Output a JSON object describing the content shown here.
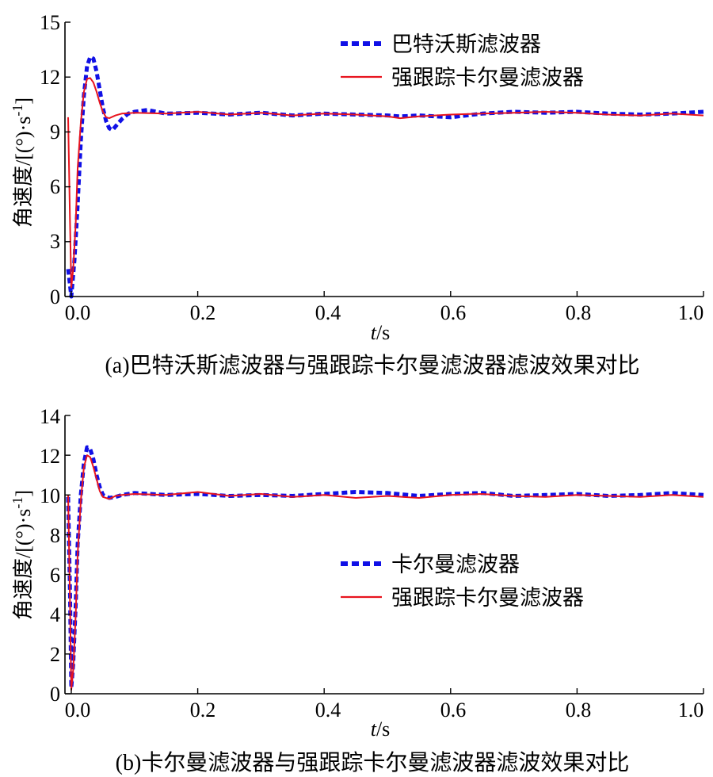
{
  "chart_data": [
    {
      "type": "line",
      "caption": "(a)巴特沃斯滤波器与强跟踪卡尔曼滤波器滤波效果对比",
      "xlabel": {
        "italic": "t",
        "rest": "/s"
      },
      "ylabel": {
        "main": "角速度/[(°)·s",
        "sup": "-1",
        "close": "]"
      },
      "xlim": [
        -0.01,
        1.0
      ],
      "ylim": [
        0,
        15
      ],
      "xticks": [
        "0.0",
        "0.2",
        "0.4",
        "0.6",
        "0.8",
        "1.0"
      ],
      "xtick_values": [
        0.0,
        0.2,
        0.4,
        0.6,
        0.8,
        1.0
      ],
      "yticks": [
        "0",
        "3",
        "6",
        "9",
        "12",
        "15"
      ],
      "ytick_values": [
        0,
        3,
        6,
        9,
        12,
        15
      ],
      "grid": false,
      "legend_position": "top-right",
      "series": [
        {
          "name": "巴特沃斯滤波器",
          "color": "#1010e6",
          "style": "dashed",
          "points": [
            [
              -0.005,
              1.5
            ],
            [
              0.0,
              0.0
            ],
            [
              0.005,
              2.0
            ],
            [
              0.01,
              5.0
            ],
            [
              0.015,
              8.5
            ],
            [
              0.02,
              11.0
            ],
            [
              0.025,
              12.6
            ],
            [
              0.03,
              13.1
            ],
            [
              0.035,
              13.0
            ],
            [
              0.04,
              12.3
            ],
            [
              0.045,
              11.3
            ],
            [
              0.05,
              10.3
            ],
            [
              0.055,
              9.6
            ],
            [
              0.06,
              9.2
            ],
            [
              0.065,
              9.1
            ],
            [
              0.07,
              9.3
            ],
            [
              0.08,
              9.7
            ],
            [
              0.09,
              10.0
            ],
            [
              0.1,
              10.1
            ],
            [
              0.12,
              10.2
            ],
            [
              0.15,
              10.0
            ],
            [
              0.2,
              10.05
            ],
            [
              0.25,
              9.95
            ],
            [
              0.3,
              10.05
            ],
            [
              0.35,
              9.9
            ],
            [
              0.4,
              10.0
            ],
            [
              0.45,
              9.95
            ],
            [
              0.5,
              9.9
            ],
            [
              0.52,
              9.85
            ],
            [
              0.55,
              9.9
            ],
            [
              0.6,
              9.8
            ],
            [
              0.65,
              10.0
            ],
            [
              0.7,
              10.1
            ],
            [
              0.75,
              10.05
            ],
            [
              0.8,
              10.1
            ],
            [
              0.85,
              10.0
            ],
            [
              0.9,
              9.95
            ],
            [
              0.95,
              10.0
            ],
            [
              1.0,
              10.1
            ]
          ]
        },
        {
          "name": "强跟踪卡尔曼滤波器",
          "color": "#e8141e",
          "style": "solid",
          "points": [
            [
              -0.005,
              9.8
            ],
            [
              -0.002,
              4.0
            ],
            [
              0.0,
              0.5
            ],
            [
              0.003,
              1.5
            ],
            [
              0.007,
              4.0
            ],
            [
              0.01,
              7.0
            ],
            [
              0.015,
              9.5
            ],
            [
              0.02,
              11.2
            ],
            [
              0.025,
              11.9
            ],
            [
              0.03,
              11.95
            ],
            [
              0.035,
              11.7
            ],
            [
              0.04,
              11.2
            ],
            [
              0.045,
              10.6
            ],
            [
              0.05,
              10.1
            ],
            [
              0.055,
              9.8
            ],
            [
              0.06,
              9.75
            ],
            [
              0.07,
              9.9
            ],
            [
              0.08,
              10.0
            ],
            [
              0.1,
              10.05
            ],
            [
              0.15,
              10.0
            ],
            [
              0.2,
              10.1
            ],
            [
              0.25,
              9.95
            ],
            [
              0.3,
              10.05
            ],
            [
              0.35,
              9.9
            ],
            [
              0.4,
              10.0
            ],
            [
              0.45,
              9.95
            ],
            [
              0.5,
              9.85
            ],
            [
              0.52,
              9.75
            ],
            [
              0.55,
              9.85
            ],
            [
              0.6,
              9.95
            ],
            [
              0.65,
              10.0
            ],
            [
              0.7,
              10.05
            ],
            [
              0.75,
              10.1
            ],
            [
              0.8,
              10.05
            ],
            [
              0.85,
              9.95
            ],
            [
              0.9,
              9.9
            ],
            [
              0.95,
              10.0
            ],
            [
              1.0,
              9.9
            ]
          ]
        }
      ]
    },
    {
      "type": "line",
      "caption": "(b)卡尔曼滤波器与强跟踪卡尔曼滤波器滤波效果对比",
      "xlabel": {
        "italic": "t",
        "rest": "/s"
      },
      "ylabel": {
        "main": "角速度/[(°)·s",
        "sup": "-1",
        "close": "]"
      },
      "xlim": [
        -0.01,
        1.0
      ],
      "ylim": [
        0,
        14
      ],
      "xticks": [
        "0.0",
        "0.2",
        "0.4",
        "0.6",
        "0.8",
        "1.0"
      ],
      "xtick_values": [
        0.0,
        0.2,
        0.4,
        0.6,
        0.8,
        1.0
      ],
      "yticks": [
        "0",
        "2",
        "4",
        "6",
        "8",
        "10",
        "12",
        "14"
      ],
      "ytick_values": [
        0,
        2,
        4,
        6,
        8,
        10,
        12,
        14
      ],
      "grid": false,
      "legend_position": "center",
      "series": [
        {
          "name": "卡尔曼滤波器",
          "color": "#1010e6",
          "style": "dashed",
          "points": [
            [
              -0.005,
              9.9
            ],
            [
              -0.002,
              5.0
            ],
            [
              0.0,
              0.3
            ],
            [
              0.003,
              1.5
            ],
            [
              0.007,
              4.5
            ],
            [
              0.01,
              7.5
            ],
            [
              0.015,
              10.0
            ],
            [
              0.02,
              11.6
            ],
            [
              0.025,
              12.4
            ],
            [
              0.03,
              12.3
            ],
            [
              0.035,
              11.8
            ],
            [
              0.04,
              11.0
            ],
            [
              0.045,
              10.4
            ],
            [
              0.05,
              10.0
            ],
            [
              0.06,
              9.85
            ],
            [
              0.07,
              9.9
            ],
            [
              0.08,
              10.0
            ],
            [
              0.1,
              10.1
            ],
            [
              0.15,
              10.0
            ],
            [
              0.2,
              10.05
            ],
            [
              0.25,
              9.95
            ],
            [
              0.3,
              10.0
            ],
            [
              0.35,
              9.95
            ],
            [
              0.4,
              10.05
            ],
            [
              0.45,
              10.15
            ],
            [
              0.5,
              10.1
            ],
            [
              0.55,
              9.95
            ],
            [
              0.6,
              10.05
            ],
            [
              0.65,
              10.1
            ],
            [
              0.7,
              9.95
            ],
            [
              0.75,
              10.0
            ],
            [
              0.8,
              10.05
            ],
            [
              0.85,
              9.95
            ],
            [
              0.9,
              10.0
            ],
            [
              0.95,
              10.1
            ],
            [
              1.0,
              10.0
            ]
          ]
        },
        {
          "name": "强跟踪卡尔曼滤波器",
          "color": "#e8141e",
          "style": "solid",
          "points": [
            [
              -0.005,
              10.0
            ],
            [
              -0.002,
              4.5
            ],
            [
              0.0,
              0.2
            ],
            [
              0.003,
              1.2
            ],
            [
              0.007,
              4.0
            ],
            [
              0.01,
              7.0
            ],
            [
              0.015,
              9.7
            ],
            [
              0.02,
              11.4
            ],
            [
              0.025,
              12.0
            ],
            [
              0.03,
              11.9
            ],
            [
              0.035,
              11.4
            ],
            [
              0.04,
              10.8
            ],
            [
              0.045,
              10.2
            ],
            [
              0.05,
              9.9
            ],
            [
              0.06,
              9.8
            ],
            [
              0.07,
              9.95
            ],
            [
              0.08,
              10.0
            ],
            [
              0.1,
              10.05
            ],
            [
              0.15,
              10.0
            ],
            [
              0.2,
              10.15
            ],
            [
              0.25,
              9.95
            ],
            [
              0.3,
              10.05
            ],
            [
              0.35,
              9.9
            ],
            [
              0.4,
              10.0
            ],
            [
              0.45,
              9.85
            ],
            [
              0.5,
              9.95
            ],
            [
              0.55,
              9.85
            ],
            [
              0.6,
              10.0
            ],
            [
              0.65,
              10.05
            ],
            [
              0.7,
              9.95
            ],
            [
              0.75,
              9.9
            ],
            [
              0.8,
              10.0
            ],
            [
              0.85,
              9.95
            ],
            [
              0.9,
              9.9
            ],
            [
              0.95,
              10.0
            ],
            [
              1.0,
              9.9
            ]
          ]
        }
      ]
    }
  ]
}
